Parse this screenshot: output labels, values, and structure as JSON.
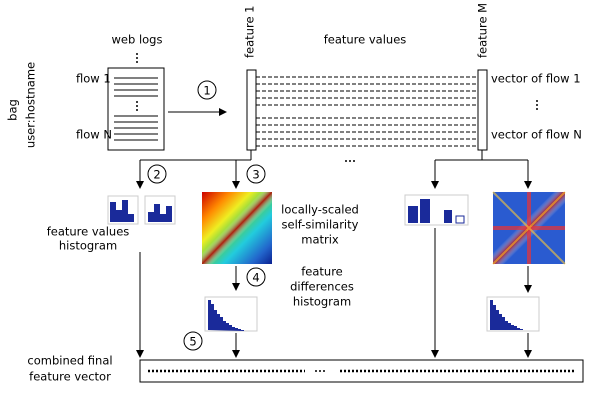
{
  "header": {
    "web_logs": "web logs",
    "feature_values": "feature values",
    "feature_first": "feature 1",
    "feature_last": "feature M"
  },
  "bag": {
    "label": "bag",
    "sublabel": "user:hostname"
  },
  "flows": {
    "first": "flow 1",
    "last": "flow N"
  },
  "vectors": {
    "first": "vector of flow 1",
    "last": "vector of flow N"
  },
  "steps": [
    "1",
    "2",
    "3",
    "4",
    "5"
  ],
  "captions": {
    "values_histogram": [
      "feature values",
      "histogram"
    ],
    "similarity_matrix": [
      "locally-scaled",
      "self-similarity",
      "matrix"
    ],
    "differences_histogram": [
      "feature",
      "differences",
      "histogram"
    ],
    "final_vector": [
      "combined final",
      "feature vector"
    ]
  }
}
